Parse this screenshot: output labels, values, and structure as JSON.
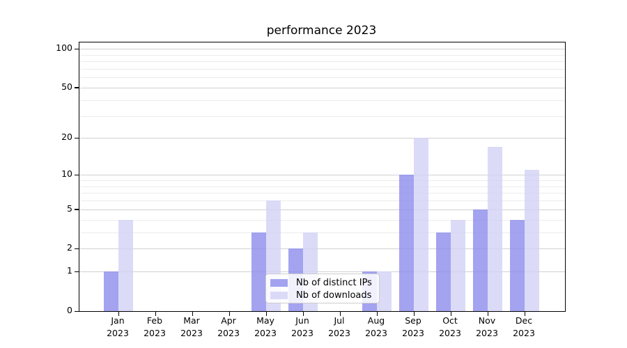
{
  "title": "performance 2023",
  "legend": {
    "items": [
      {
        "label": "Nb of distinct IPs",
        "color": "rgba(140,140,236,0.8)"
      },
      {
        "label": "Nb of downloads",
        "color": "rgba(210,210,246,0.8)"
      }
    ]
  },
  "y_axis": {
    "tick_values": [
      0,
      1,
      2,
      5,
      10,
      20,
      50,
      100
    ],
    "tick_labels": [
      "0",
      "1",
      "2",
      "5",
      "10",
      "20",
      "50",
      "100"
    ],
    "minor_values": [
      3,
      4,
      6,
      7,
      8,
      9,
      30,
      40,
      60,
      70,
      80,
      90
    ]
  },
  "x_axis": {
    "months": [
      "Jan",
      "Feb",
      "Mar",
      "Apr",
      "May",
      "Jun",
      "Jul",
      "Aug",
      "Sep",
      "Oct",
      "Nov",
      "Dec"
    ],
    "year": "2023"
  },
  "chart_data": {
    "type": "bar",
    "title": "performance 2023",
    "categories": [
      "Jan 2023",
      "Feb 2023",
      "Mar 2023",
      "Apr 2023",
      "May 2023",
      "Jun 2023",
      "Jul 2023",
      "Aug 2023",
      "Sep 2023",
      "Oct 2023",
      "Nov 2023",
      "Dec 2023"
    ],
    "series": [
      {
        "name": "Nb of distinct IPs",
        "color": "rgba(140,140,236,0.8)",
        "values": [
          1,
          0,
          0,
          0,
          3,
          2,
          0,
          1,
          10,
          3,
          5,
          4
        ]
      },
      {
        "name": "Nb of downloads",
        "color": "rgba(210,210,246,0.8)",
        "values": [
          4,
          0,
          0,
          0,
          6,
          3,
          0,
          1,
          20,
          4,
          17,
          11
        ]
      }
    ],
    "xlabel": "",
    "ylabel": "",
    "y_scale": "log-like: y position proportional to log10(1+value)",
    "y_tick_labels": [
      "0",
      "1",
      "2",
      "5",
      "10",
      "20",
      "50",
      "100"
    ],
    "ylim": [
      0,
      112
    ],
    "grid": "horizontal major + minor",
    "legend_position": "lower center"
  }
}
